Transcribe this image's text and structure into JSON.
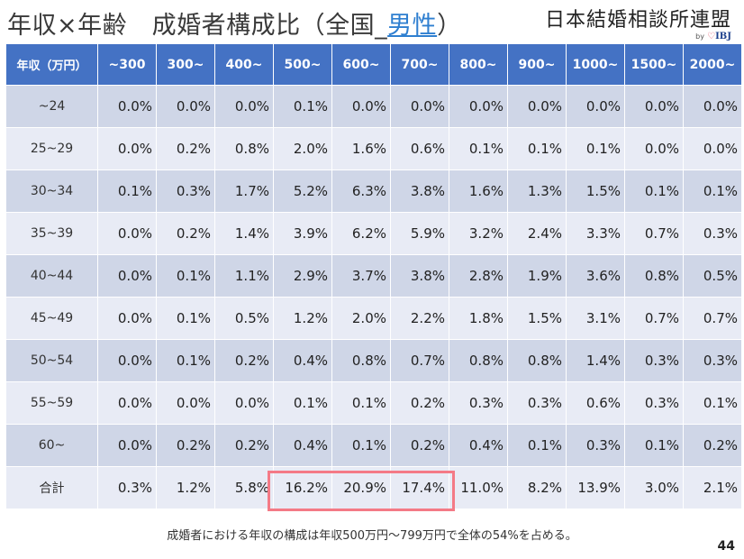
{
  "header": {
    "title_prefix": "年収×年齢　成婚者構成比（全国_",
    "title_highlight": "男性",
    "title_suffix": "）"
  },
  "logo": {
    "name": "日本結婚相談所連盟",
    "by": "by",
    "abbr": "IBJ"
  },
  "table": {
    "corner_header": "年収（万円）",
    "column_headers": [
      "~300",
      "300~",
      "400~",
      "500~",
      "600~",
      "700~",
      "800~",
      "900~",
      "1000~",
      "1500~",
      "2000~"
    ],
    "rows": [
      {
        "label": "~24",
        "values": [
          "0.0%",
          "0.0%",
          "0.0%",
          "0.1%",
          "0.0%",
          "0.0%",
          "0.0%",
          "0.0%",
          "0.0%",
          "0.0%",
          "0.0%"
        ]
      },
      {
        "label": "25~29",
        "values": [
          "0.0%",
          "0.2%",
          "0.8%",
          "2.0%",
          "1.6%",
          "0.6%",
          "0.1%",
          "0.1%",
          "0.1%",
          "0.0%",
          "0.0%"
        ]
      },
      {
        "label": "30~34",
        "values": [
          "0.1%",
          "0.3%",
          "1.7%",
          "5.2%",
          "6.3%",
          "3.8%",
          "1.6%",
          "1.3%",
          "1.5%",
          "0.1%",
          "0.1%"
        ]
      },
      {
        "label": "35~39",
        "values": [
          "0.0%",
          "0.2%",
          "1.4%",
          "3.9%",
          "6.2%",
          "5.9%",
          "3.2%",
          "2.4%",
          "3.3%",
          "0.7%",
          "0.3%"
        ]
      },
      {
        "label": "40~44",
        "values": [
          "0.0%",
          "0.1%",
          "1.1%",
          "2.9%",
          "3.7%",
          "3.8%",
          "2.8%",
          "1.9%",
          "3.6%",
          "0.8%",
          "0.5%"
        ]
      },
      {
        "label": "45~49",
        "values": [
          "0.0%",
          "0.1%",
          "0.5%",
          "1.2%",
          "2.0%",
          "2.2%",
          "1.8%",
          "1.5%",
          "3.1%",
          "0.7%",
          "0.7%"
        ]
      },
      {
        "label": "50~54",
        "values": [
          "0.0%",
          "0.1%",
          "0.2%",
          "0.4%",
          "0.8%",
          "0.7%",
          "0.8%",
          "0.8%",
          "1.4%",
          "0.3%",
          "0.3%"
        ]
      },
      {
        "label": "55~59",
        "values": [
          "0.0%",
          "0.0%",
          "0.0%",
          "0.1%",
          "0.1%",
          "0.2%",
          "0.3%",
          "0.3%",
          "0.6%",
          "0.3%",
          "0.1%"
        ]
      },
      {
        "label": "60~",
        "values": [
          "0.0%",
          "0.2%",
          "0.2%",
          "0.4%",
          "0.1%",
          "0.2%",
          "0.4%",
          "0.1%",
          "0.3%",
          "0.1%",
          "0.2%"
        ]
      },
      {
        "label": "合計",
        "values": [
          "0.3%",
          "1.2%",
          "5.8%",
          "16.2%",
          "20.9%",
          "17.4%",
          "11.0%",
          "8.2%",
          "13.9%",
          "3.0%",
          "2.1%"
        ]
      }
    ]
  },
  "footer": {
    "note": "成婚者における年収の構成は年収500万円～799万円で全体の54%を占める。",
    "page_number": "44"
  },
  "colors": {
    "header_bg": "#4472c4",
    "row_odd": "#cfd6e7",
    "row_even": "#e8ebf5",
    "highlight_border": "#f47a86",
    "title_accent": "#2f7fd0"
  }
}
